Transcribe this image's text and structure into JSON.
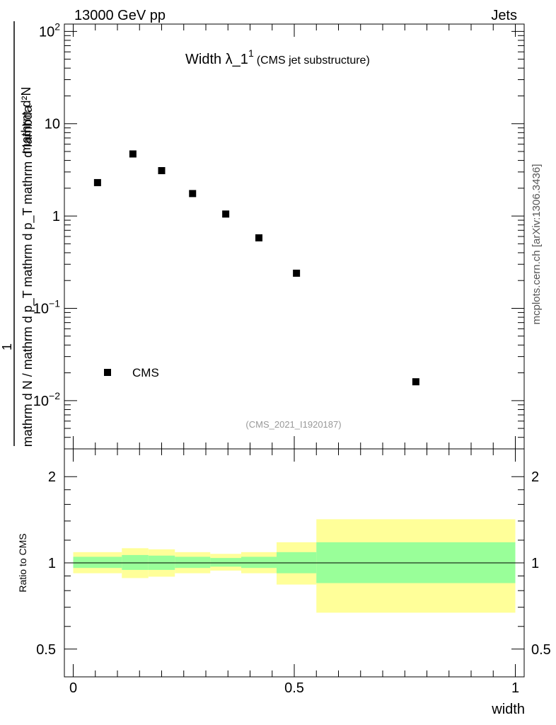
{
  "header": {
    "left": "13000 GeV pp",
    "right": "Jets"
  },
  "title": {
    "main": "Width λ_1",
    "sup": "1",
    "sub": "(CMS jet substructure)"
  },
  "ylabel": {
    "numerator": "mathrm d²N",
    "denominator": "mathrm d N / mathrm d p_T mathrm d p_T mathrm d lambda",
    "one": "1"
  },
  "side_label": "mcplots.cern.ch [arXiv:1306.3436]",
  "analysis_id": "(CMS_2021_I1920187)",
  "ratio_ylabel": "Ratio to CMS",
  "colors": {
    "inner_band": "#99ff99",
    "outer_band": "#ffff99",
    "marker": "#000000"
  },
  "chart_data": [
    {
      "type": "scatter",
      "log_y": true,
      "xlim": [
        -0.02,
        1.02
      ],
      "ylim": [
        0.003,
        120
      ],
      "y_ticks": [
        {
          "value": 100,
          "base": "10",
          "exp": "2"
        },
        {
          "value": 10,
          "base": "10",
          "exp": ""
        },
        {
          "value": 1,
          "base": "1",
          "exp": ""
        },
        {
          "value": 0.1,
          "base": "10",
          "exp": "−1"
        },
        {
          "value": 0.01,
          "base": "10",
          "exp": "−2"
        }
      ],
      "legend": {
        "entries": [
          "CMS"
        ],
        "placement": "bottom-left"
      },
      "series": [
        {
          "name": "CMS",
          "x": [
            0.055,
            0.135,
            0.2,
            0.27,
            0.345,
            0.42,
            0.505,
            0.775
          ],
          "y": [
            2.3,
            4.7,
            3.1,
            1.75,
            1.05,
            0.58,
            0.24,
            0.016
          ]
        }
      ]
    },
    {
      "type": "area",
      "xlabel": "width",
      "ylabel": "Ratio to CMS",
      "xlim": [
        -0.02,
        1.02
      ],
      "ylim": [
        0.4,
        2.5
      ],
      "log_y": true,
      "x_ticks": [
        "0",
        "0.5",
        "1"
      ],
      "x_tick_values": [
        0,
        0.5,
        1
      ],
      "y_ticks": [
        "0.5",
        "1",
        "2"
      ],
      "y_tick_values": [
        0.5,
        1,
        2
      ],
      "reference_line": 1,
      "bins": [
        {
          "x0": 0.0,
          "x1": 0.11,
          "inner": [
            0.96,
            1.05
          ],
          "outer": [
            0.92,
            1.09
          ]
        },
        {
          "x0": 0.11,
          "x1": 0.17,
          "inner": [
            0.945,
            1.065
          ],
          "outer": [
            0.885,
            1.125
          ]
        },
        {
          "x0": 0.17,
          "x1": 0.23,
          "inner": [
            0.945,
            1.06
          ],
          "outer": [
            0.895,
            1.115
          ]
        },
        {
          "x0": 0.23,
          "x1": 0.31,
          "inner": [
            0.96,
            1.05
          ],
          "outer": [
            0.92,
            1.09
          ]
        },
        {
          "x0": 0.31,
          "x1": 0.38,
          "inner": [
            0.97,
            1.04
          ],
          "outer": [
            0.94,
            1.075
          ]
        },
        {
          "x0": 0.38,
          "x1": 0.46,
          "inner": [
            0.96,
            1.05
          ],
          "outer": [
            0.92,
            1.09
          ]
        },
        {
          "x0": 0.46,
          "x1": 0.55,
          "inner": [
            0.92,
            1.09
          ],
          "outer": [
            0.84,
            1.18
          ]
        },
        {
          "x0": 0.55,
          "x1": 1.0,
          "inner": [
            0.85,
            1.18
          ],
          "outer": [
            0.67,
            1.42
          ]
        }
      ]
    }
  ]
}
